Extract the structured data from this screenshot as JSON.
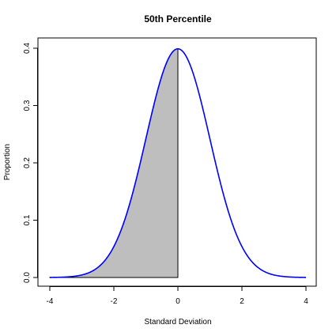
{
  "chart_data": {
    "type": "area",
    "title": "50th Percentile",
    "xlabel": "Standard Deviation",
    "ylabel": "Proportion",
    "xlim": [
      -4,
      4
    ],
    "ylim": [
      0,
      0.4
    ],
    "x_ticks": [
      -4,
      -2,
      0,
      2,
      4
    ],
    "y_ticks": [
      0.0,
      0.1,
      0.2,
      0.3,
      0.4
    ],
    "x_tick_labels": [
      "-4",
      "-2",
      "0",
      "2",
      "4"
    ],
    "y_tick_labels": [
      "0.0",
      "0.1",
      "0.2",
      "0.3",
      "0.4"
    ],
    "grid": false,
    "series": [
      {
        "x": [
          -4.0,
          -3.5,
          -3.0,
          -2.5,
          -2.0,
          -1.5,
          -1.0,
          -0.5,
          0.0,
          0.5,
          1.0,
          1.5,
          2.0,
          2.5,
          3.0,
          3.5,
          4.0
        ],
        "y": [
          0.0001,
          0.0009,
          0.0044,
          0.0175,
          0.054,
          0.1295,
          0.242,
          0.3521,
          0.3989,
          0.3521,
          0.242,
          0.1295,
          0.054,
          0.0175,
          0.0044,
          0.0009,
          0.0001
        ]
      }
    ],
    "shaded_region": {
      "from": -4,
      "to": 0
    },
    "colors": {
      "line": "#0000ff",
      "shade_fill": "#bebebe",
      "shade_stroke": "#000000"
    }
  }
}
